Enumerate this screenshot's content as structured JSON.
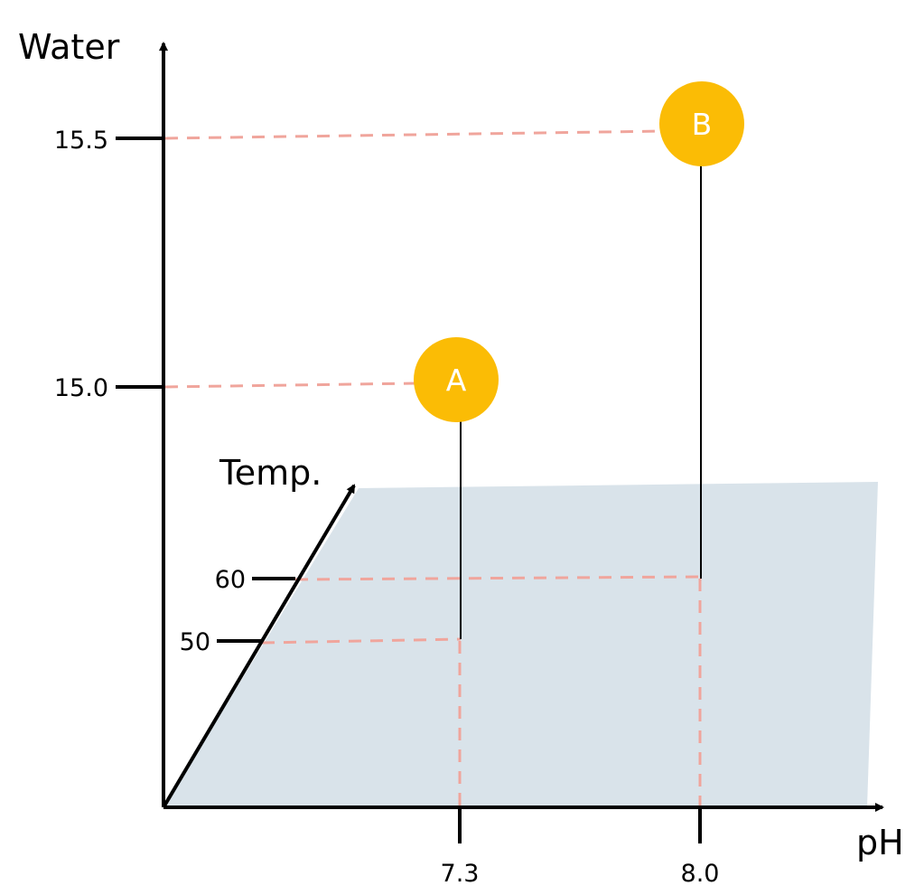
{
  "axes": {
    "y_title": "Water",
    "z_title": "Temp.",
    "x_title": "pH"
  },
  "ticks": {
    "water": [
      "15.5",
      "15.0"
    ],
    "temp": [
      "60",
      "50"
    ],
    "ph": [
      "7.3",
      "8.0"
    ]
  },
  "points": [
    {
      "label": "A",
      "ph": 7.3,
      "temp": 50,
      "water": 15.0
    },
    {
      "label": "B",
      "ph": 8.0,
      "temp": 60,
      "water": 15.5
    }
  ],
  "colors": {
    "plane": "#d9e3ea",
    "guide": "#f0a59c",
    "marker": "#fbbc05",
    "axis": "#000000"
  }
}
